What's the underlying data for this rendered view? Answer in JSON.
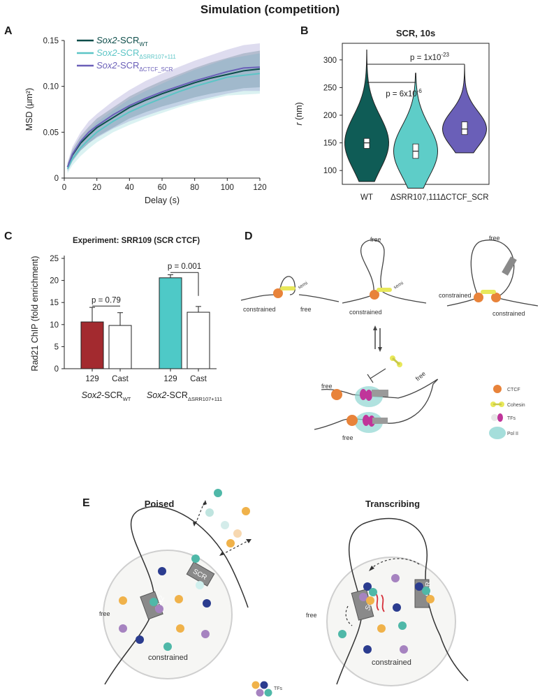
{
  "figure_title": "Simulation (competition)",
  "panel_labels": {
    "a": "A",
    "b": "B",
    "c": "C",
    "d": "D",
    "e": "E"
  },
  "chart_data": [
    {
      "id": "A",
      "type": "line",
      "title": "",
      "xlabel": "Delay (s)",
      "ylabel": "MSD (μm²)",
      "xlim": [
        0,
        120
      ],
      "ylim": [
        0,
        0.15
      ],
      "xticks": [
        0,
        20,
        40,
        60,
        80,
        100,
        120
      ],
      "yticks": [
        "0",
        "0.05",
        "0.10",
        "0.15"
      ],
      "ytick_values": [
        0,
        0.05,
        0.1,
        0.15
      ],
      "x": [
        2,
        5,
        10,
        15,
        20,
        30,
        40,
        50,
        60,
        70,
        80,
        90,
        100,
        110,
        120
      ],
      "series": [
        {
          "name_italic": "Sox2",
          "name_rest": "-SCR",
          "name_sub": "WT",
          "color": "#0d4d4a",
          "values": [
            0.012,
            0.025,
            0.038,
            0.047,
            0.055,
            0.066,
            0.077,
            0.085,
            0.092,
            0.098,
            0.104,
            0.109,
            0.113,
            0.117,
            0.119
          ],
          "band": [
            0.004,
            0.006,
            0.008,
            0.009,
            0.01,
            0.011,
            0.012,
            0.013,
            0.014,
            0.015,
            0.016,
            0.017,
            0.018,
            0.019,
            0.02
          ]
        },
        {
          "name_italic": "Sox2",
          "name_rest": "-SCR",
          "name_sub": "ΔSRR107+111",
          "color": "#5cc5c6",
          "values": [
            0.01,
            0.021,
            0.033,
            0.042,
            0.05,
            0.062,
            0.072,
            0.08,
            0.087,
            0.094,
            0.1,
            0.105,
            0.11,
            0.112,
            0.114
          ],
          "band": [
            0.005,
            0.007,
            0.009,
            0.01,
            0.011,
            0.012,
            0.014,
            0.015,
            0.016,
            0.017,
            0.018,
            0.019,
            0.02,
            0.021,
            0.022
          ]
        },
        {
          "name_italic": "Sox2",
          "name_rest": "-SCR",
          "name_sub": "ΔCTCF_SCR",
          "color": "#6a5fb8",
          "values": [
            0.012,
            0.026,
            0.04,
            0.05,
            0.057,
            0.069,
            0.079,
            0.087,
            0.094,
            0.1,
            0.106,
            0.111,
            0.116,
            0.12,
            0.121
          ],
          "band": [
            0.005,
            0.008,
            0.01,
            0.012,
            0.013,
            0.015,
            0.017,
            0.019,
            0.02,
            0.021,
            0.022,
            0.023,
            0.024,
            0.025,
            0.026
          ]
        }
      ]
    },
    {
      "id": "B",
      "type": "violin",
      "title": "SCR, 10s",
      "ylabel": "r (nm)",
      "ylabel_italic": "r",
      "ylabel_rest": " (nm)",
      "ylim": [
        75,
        330
      ],
      "yticks": [
        100,
        150,
        200,
        250,
        300
      ],
      "categories": [
        "WT",
        "ΔSRR107,111",
        "ΔCTCF_SCR"
      ],
      "colors": [
        "#0f5c56",
        "#5ecdc8",
        "#6a5fb8"
      ],
      "min": [
        80,
        68,
        132
      ],
      "max": [
        318,
        276,
        290
      ],
      "q1": [
        140,
        122,
        165
      ],
      "median": [
        150,
        135,
        175
      ],
      "q3": [
        158,
        148,
        188
      ],
      "significance": [
        {
          "pair": [
            0,
            1
          ],
          "label": "p = 6x10",
          "exp": "-6"
        },
        {
          "pair": [
            0,
            2
          ],
          "label": "p = 1x10",
          "exp": "-23"
        }
      ]
    },
    {
      "id": "C",
      "type": "bar",
      "title": "Experiment: SRR109 (SCR CTCF)",
      "ylabel": "Rad21 ChIP (fold enrichment)",
      "ylim": [
        0,
        25
      ],
      "yticks": [
        0,
        5,
        10,
        15,
        20,
        25
      ],
      "categories": [
        "129",
        "Cast",
        "129",
        "Cast"
      ],
      "values": [
        10.6,
        9.8,
        20.6,
        12.8
      ],
      "errors": [
        3.3,
        2.9,
        0.7,
        1.3
      ],
      "colors": [
        "#a32a2f",
        "#ffffff",
        "#4ec9c7",
        "#ffffff"
      ],
      "groups": [
        {
          "italic": "Sox2",
          "rest": "-SCR",
          "sub": "WT"
        },
        {
          "italic": "Sox2",
          "rest": "-SCR",
          "sub": "ΔSRR107+111"
        }
      ],
      "significance": [
        {
          "pair": [
            0,
            1
          ],
          "label": "p = 0.79"
        },
        {
          "pair": [
            2,
            3
          ],
          "label": "p = 0.001"
        }
      ]
    }
  ],
  "panel_d": {
    "labels": {
      "semi": "semi",
      "constrained": "constrained",
      "free": "free"
    },
    "legend": [
      "CTCF",
      "Cohesin",
      "TFs",
      "Pol II"
    ]
  },
  "panel_e": {
    "poised_title": "Poised",
    "transcribing_title": "Transcribing",
    "free": "free",
    "constrained": "constrained",
    "sox2": "Sox2",
    "scr": "SCR",
    "tfs": "TFs"
  },
  "colors": {
    "ctcf": "#e8833a",
    "cohesin": "#e8e85a",
    "tf_magenta": "#c0359a",
    "pol2": "#8fd6d2",
    "gray_box": "#8a8a8a",
    "tf_teal": "#4fb8a8",
    "tf_navy": "#2b3c8f",
    "tf_orange": "#f0b24a",
    "tf_purple": "#a683c0"
  }
}
